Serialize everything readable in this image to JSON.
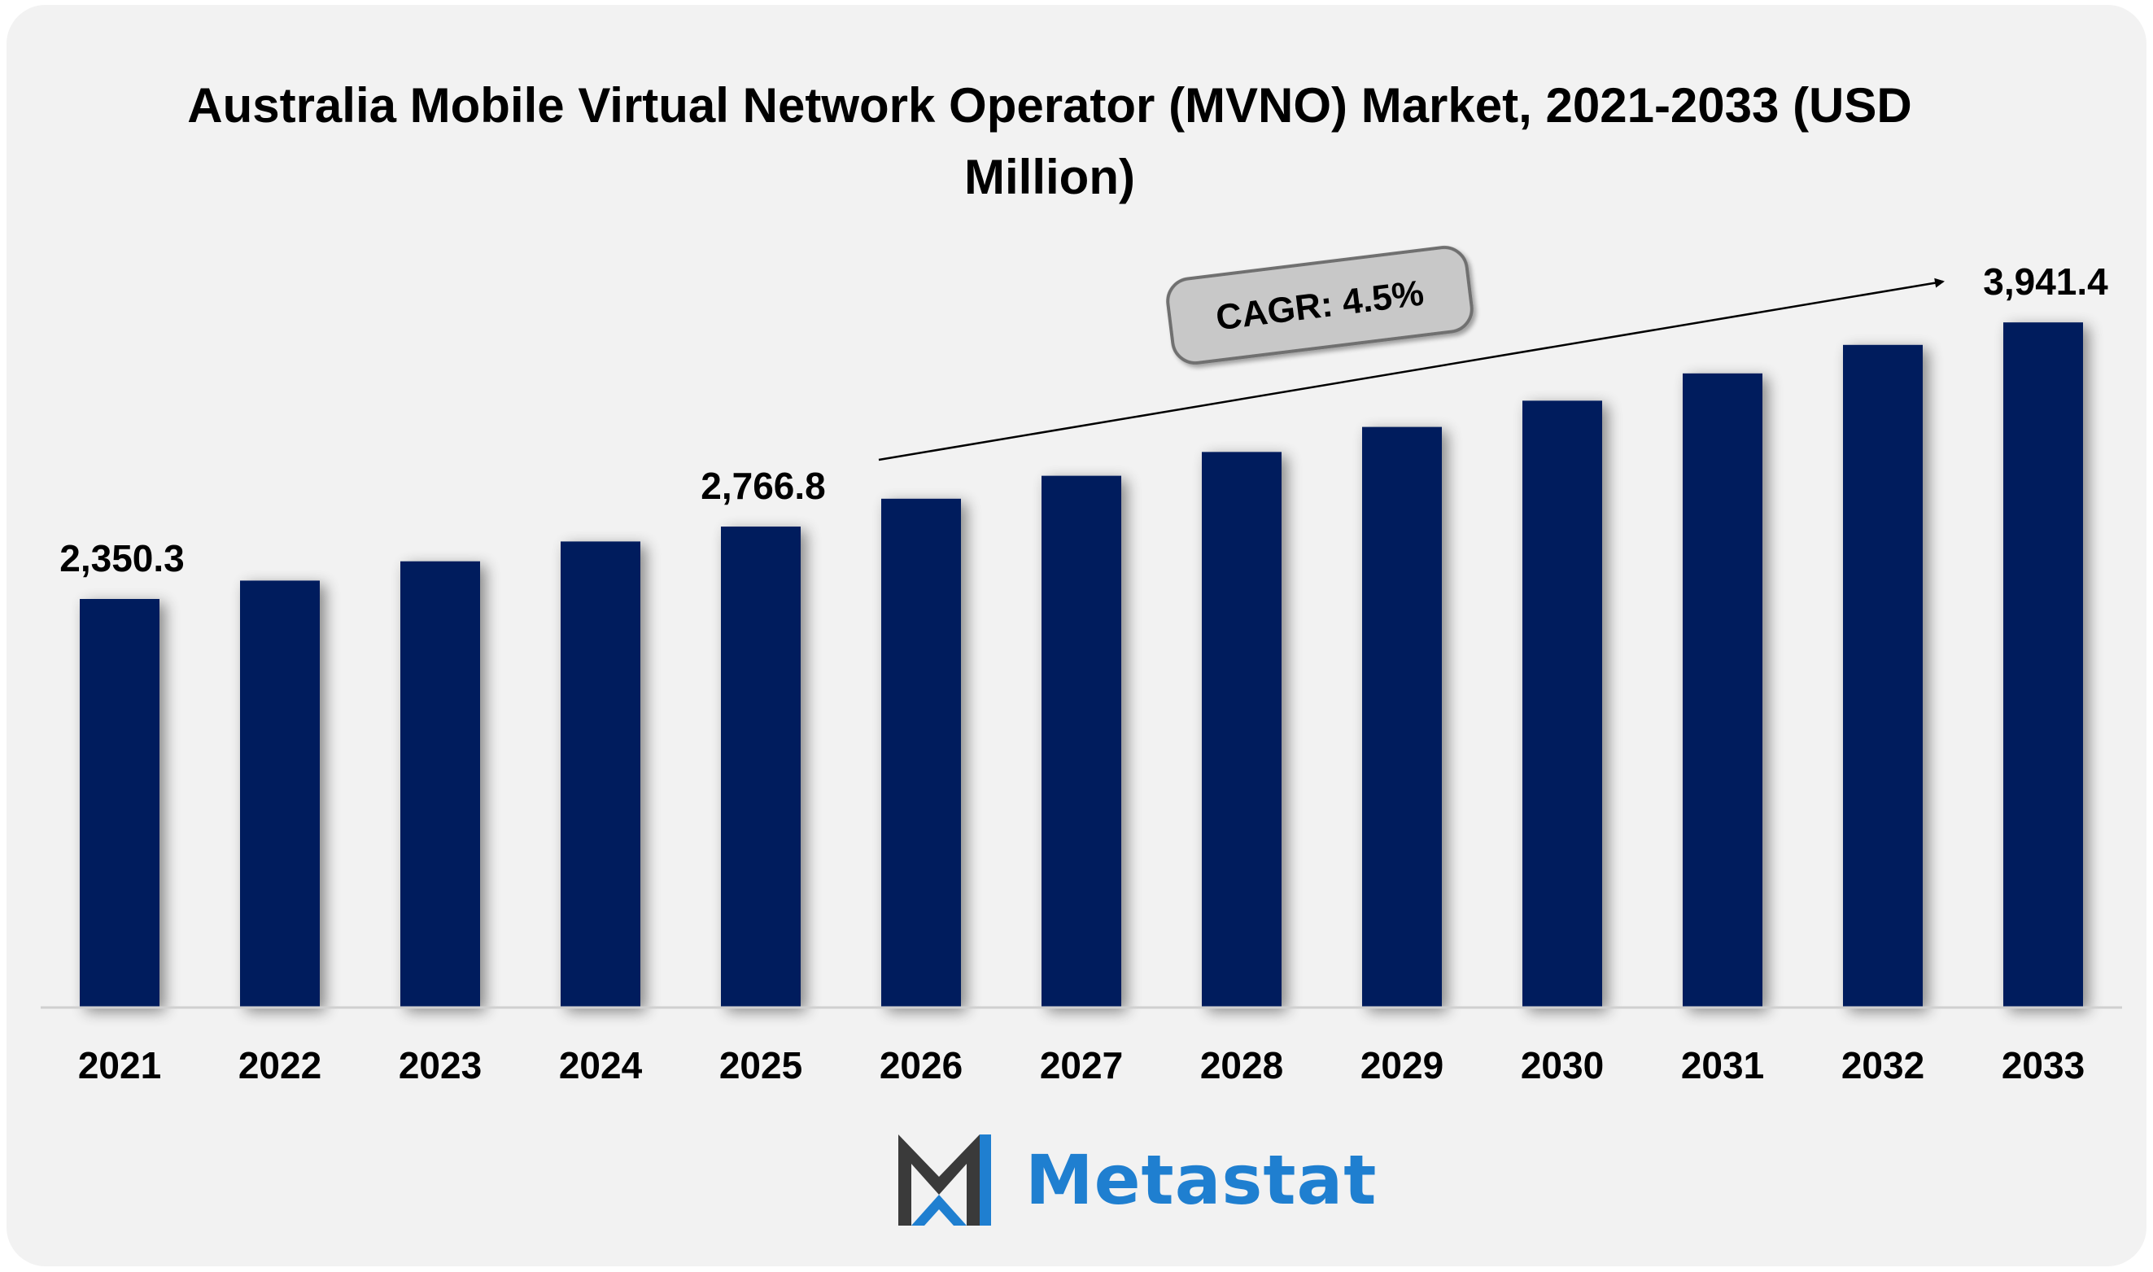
{
  "chart_data": {
    "type": "bar",
    "title": "Australia Mobile Virtual Network Operator (MVNO) Market, 2021-2033 (USD Million)",
    "categories": [
      "2021",
      "2022",
      "2023",
      "2024",
      "2025",
      "2026",
      "2027",
      "2028",
      "2029",
      "2030",
      "2031",
      "2032",
      "2033"
    ],
    "values": [
      2350.3,
      2456.0,
      2567.0,
      2681.0,
      2766.8,
      2927.0,
      3059.0,
      3196.0,
      3340.0,
      3491.0,
      3648.0,
      3812.0,
      3941.4
    ],
    "data_labels": [
      {
        "index": 0,
        "text": "2,350.3"
      },
      {
        "index": 4,
        "text": "2,766.8"
      },
      {
        "index": 12,
        "text": "3,941.4"
      }
    ],
    "annotation": "CAGR: 4.5%",
    "xlabel": "",
    "ylabel": "",
    "ylim": [
      0,
      4500
    ],
    "grid": false,
    "legend": "none"
  },
  "colors": {
    "bar": "#041e5d",
    "background": "#f2f2f2",
    "logo_blue": "#1f7fd0",
    "logo_dark": "#3a3a3a",
    "badge": "#c8c8c8"
  },
  "logo": {
    "text": "Metastat",
    "icon": "metastat-m-logo-icon"
  }
}
